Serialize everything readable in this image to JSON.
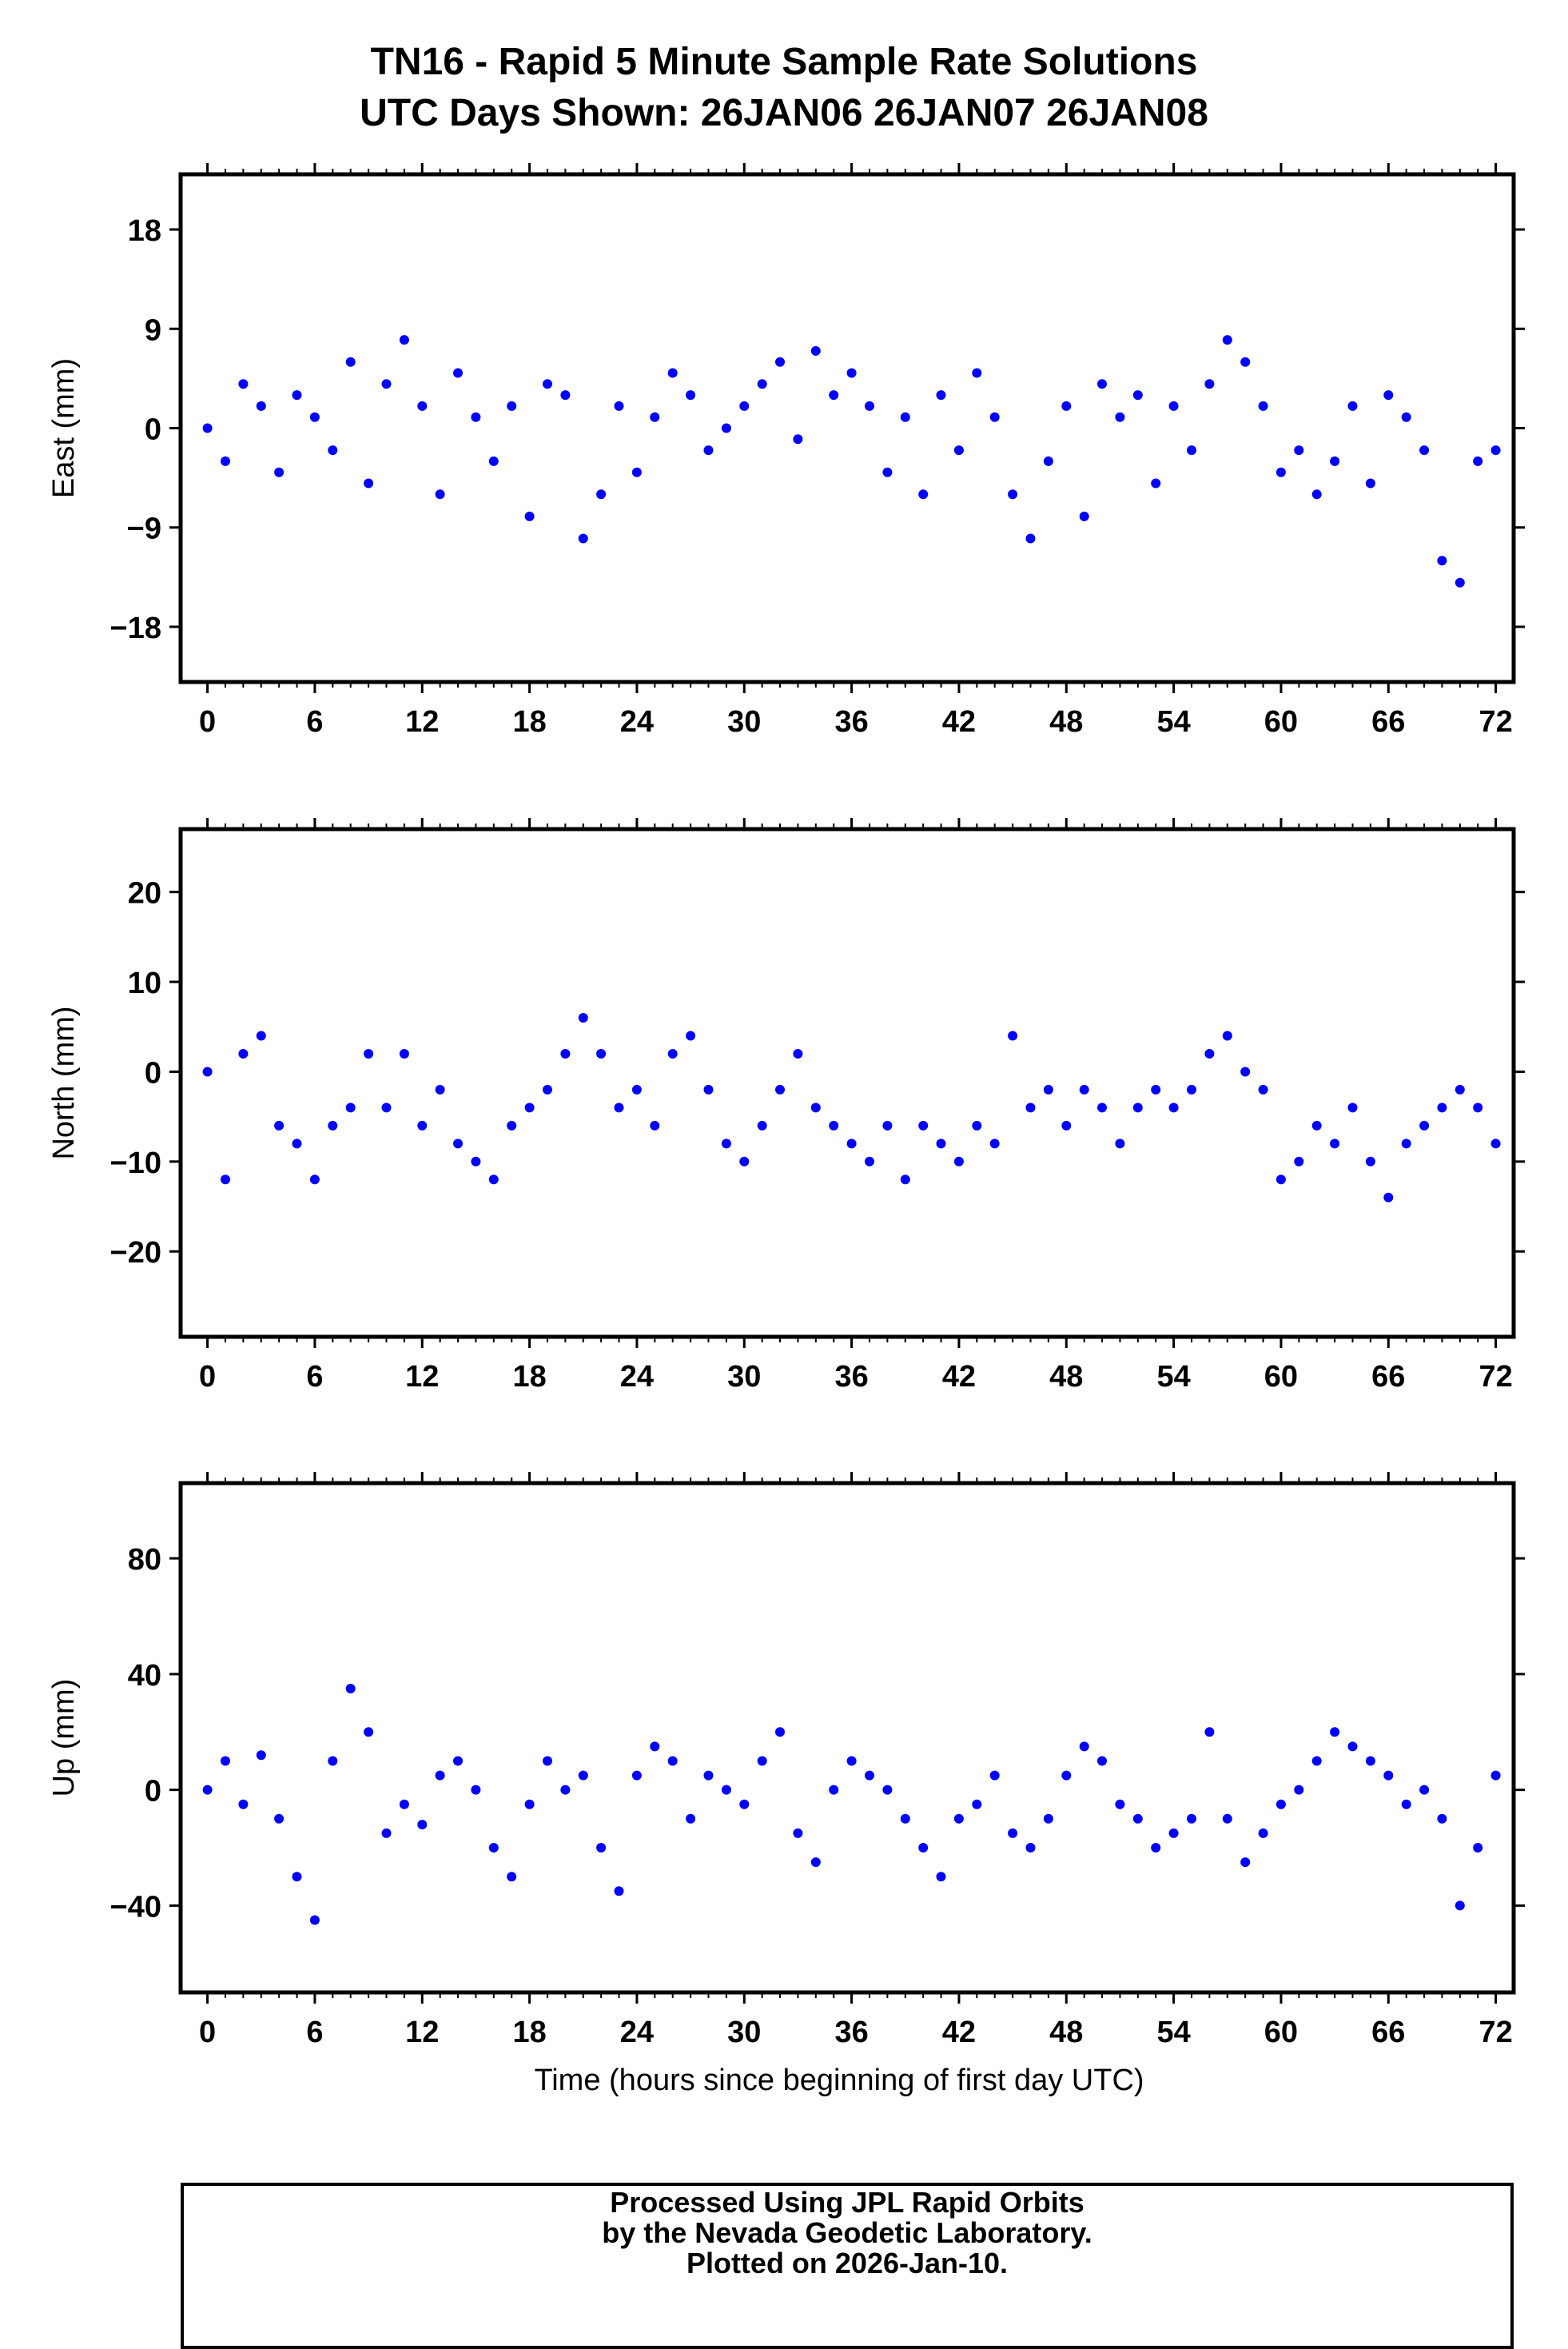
{
  "title": {
    "line1": "TN16 - Rapid 5 Minute Sample Rate Solutions",
    "line2": "UTC Days Shown:  26JAN06 26JAN07 26JAN08"
  },
  "footer": {
    "line1": "Processed Using JPL Rapid Orbits",
    "line2": "by the Nevada Geodetic Laboratory.",
    "line3": "Plotted on 2026-Jan-10."
  },
  "colors": {
    "points": "#0000ff",
    "axes": "#000000"
  },
  "chart_data": [
    {
      "type": "scatter",
      "title": "",
      "xlabel": "",
      "ylabel": "East (mm)",
      "xlim": [
        -1.5,
        73
      ],
      "ylim": [
        -23,
        23
      ],
      "xticks": [
        0,
        6,
        12,
        18,
        24,
        30,
        36,
        42,
        48,
        54,
        60,
        66,
        72
      ],
      "yticks": [
        18,
        9,
        0,
        -9,
        -18
      ],
      "ytick_labels": [
        "18",
        "9",
        "0",
        "−9",
        "−18"
      ],
      "grid": false,
      "series": [
        {
          "x": [
            0,
            1,
            2,
            3,
            4,
            5,
            6,
            7,
            8,
            9,
            10,
            11,
            12,
            13,
            14,
            15,
            16,
            17,
            18,
            19,
            20,
            21,
            22,
            23,
            24,
            25,
            26,
            27,
            28,
            29,
            30,
            31,
            32,
            33,
            34,
            35,
            36,
            37,
            38,
            39,
            40,
            41,
            42,
            43,
            44,
            45,
            46,
            47,
            48,
            49,
            50,
            51,
            52,
            53,
            54,
            55,
            56,
            57,
            58,
            59,
            60,
            61,
            62,
            63,
            64,
            65,
            66,
            67,
            68,
            69,
            70,
            71,
            72
          ],
          "y": [
            0,
            -3,
            4,
            2,
            -4,
            3,
            1,
            -2,
            6,
            -5,
            4,
            8,
            2,
            -6,
            5,
            1,
            -3,
            2,
            -8,
            4,
            3,
            -10,
            -6,
            2,
            -4,
            1,
            5,
            3,
            -2,
            0,
            2,
            4,
            6,
            -1,
            7,
            3,
            5,
            2,
            -4,
            1,
            -6,
            3,
            -2,
            5,
            1,
            -6,
            -10,
            -3,
            2,
            -8,
            4,
            1,
            3,
            -5,
            2,
            -2,
            4,
            8,
            6,
            2,
            -4,
            -2,
            -6,
            -3,
            2,
            -5,
            3,
            1,
            -2,
            -12,
            -14,
            -3,
            -2
          ]
        }
      ]
    },
    {
      "type": "scatter",
      "title": "",
      "xlabel": "",
      "ylabel": "North (mm)",
      "xlim": [
        -1.5,
        73
      ],
      "ylim": [
        -29.5,
        27
      ],
      "xticks": [
        0,
        6,
        12,
        18,
        24,
        30,
        36,
        42,
        48,
        54,
        60,
        66,
        72
      ],
      "yticks": [
        20,
        10,
        0,
        -10,
        -20
      ],
      "ytick_labels": [
        "20",
        "10",
        "0",
        "−10",
        "−20"
      ],
      "grid": false,
      "series": [
        {
          "x": [
            0,
            1,
            2,
            3,
            4,
            5,
            6,
            7,
            8,
            9,
            10,
            11,
            12,
            13,
            14,
            15,
            16,
            17,
            18,
            19,
            20,
            21,
            22,
            23,
            24,
            25,
            26,
            27,
            28,
            29,
            30,
            31,
            32,
            33,
            34,
            35,
            36,
            37,
            38,
            39,
            40,
            41,
            42,
            43,
            44,
            45,
            46,
            47,
            48,
            49,
            50,
            51,
            52,
            53,
            54,
            55,
            56,
            57,
            58,
            59,
            60,
            61,
            62,
            63,
            64,
            65,
            66,
            67,
            68,
            69,
            70,
            71,
            72
          ],
          "y": [
            0,
            -12,
            2,
            4,
            -6,
            -8,
            -12,
            -6,
            -4,
            2,
            -4,
            2,
            -6,
            -2,
            -8,
            -10,
            -12,
            -6,
            -4,
            -2,
            2,
            6,
            2,
            -4,
            -2,
            -6,
            2,
            4,
            -2,
            -8,
            -10,
            -6,
            -2,
            2,
            -4,
            -6,
            -8,
            -10,
            -6,
            -12,
            -6,
            -8,
            -10,
            -6,
            -8,
            4,
            -4,
            -2,
            -6,
            -2,
            -4,
            -8,
            -4,
            -2,
            -4,
            -2,
            2,
            4,
            0,
            -2,
            -12,
            -10,
            -6,
            -8,
            -4,
            -10,
            -14,
            -8,
            -6,
            -4,
            -2,
            -4,
            -8
          ]
        }
      ]
    },
    {
      "type": "scatter",
      "title": "",
      "xlabel": "Time (hours since beginning of first day UTC)",
      "ylabel": "Up (mm)",
      "xlim": [
        -1.5,
        73
      ],
      "ylim": [
        -70,
        106
      ],
      "xticks": [
        0,
        6,
        12,
        18,
        24,
        30,
        36,
        42,
        48,
        54,
        60,
        66,
        72
      ],
      "yticks": [
        80,
        40,
        0,
        -40
      ],
      "ytick_labels": [
        "80",
        "40",
        "0",
        "−40"
      ],
      "grid": false,
      "series": [
        {
          "x": [
            0,
            1,
            2,
            3,
            4,
            5,
            6,
            7,
            8,
            9,
            10,
            11,
            12,
            13,
            14,
            15,
            16,
            17,
            18,
            19,
            20,
            21,
            22,
            23,
            24,
            25,
            26,
            27,
            28,
            29,
            30,
            31,
            32,
            33,
            34,
            35,
            36,
            37,
            38,
            39,
            40,
            41,
            42,
            43,
            44,
            45,
            46,
            47,
            48,
            49,
            50,
            51,
            52,
            53,
            54,
            55,
            56,
            57,
            58,
            59,
            60,
            61,
            62,
            63,
            64,
            65,
            66,
            67,
            68,
            69,
            70,
            71,
            72
          ],
          "y": [
            0,
            10,
            -5,
            12,
            -10,
            -30,
            -45,
            10,
            35,
            20,
            -15,
            -5,
            -12,
            5,
            10,
            0,
            -20,
            -30,
            -5,
            10,
            0,
            5,
            -20,
            -35,
            5,
            15,
            10,
            -10,
            5,
            0,
            -5,
            10,
            20,
            -15,
            -25,
            0,
            10,
            5,
            0,
            -10,
            -20,
            -30,
            -10,
            -5,
            5,
            -15,
            -20,
            -10,
            5,
            15,
            10,
            -5,
            -10,
            -20,
            -15,
            -10,
            20,
            -10,
            -25,
            -15,
            -5,
            0,
            10,
            20,
            15,
            10,
            5,
            -5,
            0,
            -10,
            -40,
            -20,
            5
          ]
        }
      ]
    }
  ]
}
